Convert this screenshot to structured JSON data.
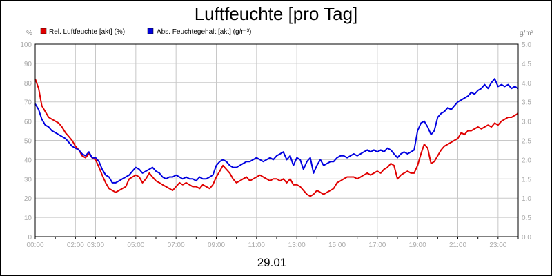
{
  "chart_data": {
    "type": "line",
    "title": "Luftfeuchte [pro Tag]",
    "date_label": "29.01",
    "y_left": {
      "unit": "%",
      "min": 0,
      "max": 100,
      "step": 10,
      "ticks": [
        "0",
        "10",
        "20",
        "30",
        "40",
        "50",
        "60",
        "70",
        "80",
        "90",
        "100"
      ]
    },
    "y_right": {
      "unit": "g/m³",
      "min": 0,
      "max": 5,
      "step": 0.5,
      "ticks": [
        "0.0",
        "0.5",
        "1.0",
        "1.5",
        "2.0",
        "2.5",
        "3.0",
        "3.5",
        "4.0",
        "4.5",
        "5.0"
      ]
    },
    "x_range_hours": [
      0,
      24
    ],
    "x_ticks": [
      {
        "h": 0,
        "label": "00:00"
      },
      {
        "h": 2,
        "label": "02:00"
      },
      {
        "h": 3,
        "label": "03:00"
      },
      {
        "h": 5,
        "label": "05:00"
      },
      {
        "h": 7,
        "label": "07:00"
      },
      {
        "h": 9,
        "label": "09:00"
      },
      {
        "h": 11,
        "label": "11:00"
      },
      {
        "h": 13,
        "label": "13:00"
      },
      {
        "h": 15,
        "label": "15:00"
      },
      {
        "h": 17,
        "label": "17:00"
      },
      {
        "h": 19,
        "label": "19:00"
      },
      {
        "h": 21,
        "label": "21:00"
      },
      {
        "h": 23,
        "label": "23:00"
      }
    ],
    "grid": true,
    "series": [
      {
        "name": "Rel. Luftfeuchte [akt] (%)",
        "axis": "left",
        "color": "#e00000",
        "points": [
          [
            0,
            82
          ],
          [
            0.17,
            77
          ],
          [
            0.33,
            68
          ],
          [
            0.5,
            65
          ],
          [
            0.67,
            62
          ],
          [
            0.83,
            61
          ],
          [
            1,
            60
          ],
          [
            1.17,
            59
          ],
          [
            1.33,
            57
          ],
          [
            1.5,
            54
          ],
          [
            1.67,
            52
          ],
          [
            1.83,
            50
          ],
          [
            2,
            47
          ],
          [
            2.17,
            45
          ],
          [
            2.33,
            42
          ],
          [
            2.5,
            41
          ],
          [
            2.67,
            43
          ],
          [
            2.83,
            41
          ],
          [
            3,
            40
          ],
          [
            3.17,
            36
          ],
          [
            3.33,
            32
          ],
          [
            3.5,
            28
          ],
          [
            3.67,
            25
          ],
          [
            3.83,
            24
          ],
          [
            4,
            23
          ],
          [
            4.17,
            24
          ],
          [
            4.33,
            25
          ],
          [
            4.5,
            26
          ],
          [
            4.67,
            30
          ],
          [
            4.83,
            31
          ],
          [
            5,
            32
          ],
          [
            5.17,
            31
          ],
          [
            5.33,
            28
          ],
          [
            5.5,
            30
          ],
          [
            5.67,
            33
          ],
          [
            5.83,
            31
          ],
          [
            6,
            29
          ],
          [
            6.17,
            28
          ],
          [
            6.33,
            27
          ],
          [
            6.5,
            26
          ],
          [
            6.67,
            25
          ],
          [
            6.83,
            24
          ],
          [
            7,
            26
          ],
          [
            7.17,
            28
          ],
          [
            7.33,
            27
          ],
          [
            7.5,
            28
          ],
          [
            7.67,
            27
          ],
          [
            7.83,
            26
          ],
          [
            8,
            26
          ],
          [
            8.17,
            25
          ],
          [
            8.33,
            27
          ],
          [
            8.5,
            26
          ],
          [
            8.67,
            25
          ],
          [
            8.83,
            27
          ],
          [
            9,
            31
          ],
          [
            9.17,
            34
          ],
          [
            9.33,
            37
          ],
          [
            9.5,
            35
          ],
          [
            9.67,
            33
          ],
          [
            9.83,
            30
          ],
          [
            10,
            28
          ],
          [
            10.17,
            29
          ],
          [
            10.33,
            30
          ],
          [
            10.5,
            31
          ],
          [
            10.67,
            29
          ],
          [
            10.83,
            30
          ],
          [
            11,
            31
          ],
          [
            11.17,
            32
          ],
          [
            11.33,
            31
          ],
          [
            11.5,
            30
          ],
          [
            11.67,
            29
          ],
          [
            11.83,
            30
          ],
          [
            12,
            30
          ],
          [
            12.17,
            29
          ],
          [
            12.33,
            30
          ],
          [
            12.5,
            28
          ],
          [
            12.67,
            30
          ],
          [
            12.83,
            27
          ],
          [
            13,
            27
          ],
          [
            13.17,
            26
          ],
          [
            13.33,
            24
          ],
          [
            13.5,
            22
          ],
          [
            13.67,
            21
          ],
          [
            13.83,
            22
          ],
          [
            14,
            24
          ],
          [
            14.17,
            23
          ],
          [
            14.33,
            22
          ],
          [
            14.5,
            23
          ],
          [
            14.67,
            24
          ],
          [
            14.83,
            25
          ],
          [
            15,
            28
          ],
          [
            15.17,
            29
          ],
          [
            15.33,
            30
          ],
          [
            15.5,
            31
          ],
          [
            15.67,
            31
          ],
          [
            15.83,
            31
          ],
          [
            16,
            30
          ],
          [
            16.17,
            31
          ],
          [
            16.33,
            32
          ],
          [
            16.5,
            33
          ],
          [
            16.67,
            32
          ],
          [
            16.83,
            33
          ],
          [
            17,
            34
          ],
          [
            17.17,
            33
          ],
          [
            17.33,
            35
          ],
          [
            17.5,
            36
          ],
          [
            17.67,
            38
          ],
          [
            17.83,
            37
          ],
          [
            18,
            30
          ],
          [
            18.17,
            32
          ],
          [
            18.33,
            33
          ],
          [
            18.5,
            34
          ],
          [
            18.67,
            33
          ],
          [
            18.83,
            33
          ],
          [
            19,
            37
          ],
          [
            19.17,
            43
          ],
          [
            19.33,
            48
          ],
          [
            19.5,
            46
          ],
          [
            19.67,
            38
          ],
          [
            19.83,
            39
          ],
          [
            20,
            42
          ],
          [
            20.17,
            45
          ],
          [
            20.33,
            47
          ],
          [
            20.5,
            48
          ],
          [
            20.67,
            49
          ],
          [
            20.83,
            50
          ],
          [
            21,
            51
          ],
          [
            21.17,
            54
          ],
          [
            21.33,
            53
          ],
          [
            21.5,
            55
          ],
          [
            21.67,
            55
          ],
          [
            21.83,
            56
          ],
          [
            22,
            57
          ],
          [
            22.17,
            56
          ],
          [
            22.33,
            57
          ],
          [
            22.5,
            58
          ],
          [
            22.67,
            57
          ],
          [
            22.83,
            59
          ],
          [
            23,
            58
          ],
          [
            23.17,
            60
          ],
          [
            23.33,
            61
          ],
          [
            23.5,
            62
          ],
          [
            23.67,
            62
          ],
          [
            23.83,
            63
          ],
          [
            24,
            64
          ]
        ]
      },
      {
        "name": "Abs. Feuchtegehalt [akt] (g/m³)",
        "axis": "right",
        "color": "#0000e0",
        "points": [
          [
            0,
            3.45
          ],
          [
            0.17,
            3.3
          ],
          [
            0.33,
            3.05
          ],
          [
            0.5,
            2.9
          ],
          [
            0.67,
            2.85
          ],
          [
            0.83,
            2.75
          ],
          [
            1,
            2.7
          ],
          [
            1.17,
            2.65
          ],
          [
            1.33,
            2.6
          ],
          [
            1.5,
            2.55
          ],
          [
            1.67,
            2.45
          ],
          [
            1.83,
            2.35
          ],
          [
            2,
            2.3
          ],
          [
            2.17,
            2.25
          ],
          [
            2.33,
            2.15
          ],
          [
            2.5,
            2.1
          ],
          [
            2.67,
            2.2
          ],
          [
            2.83,
            2.05
          ],
          [
            3,
            2.05
          ],
          [
            3.17,
            1.95
          ],
          [
            3.33,
            1.75
          ],
          [
            3.5,
            1.6
          ],
          [
            3.67,
            1.55
          ],
          [
            3.83,
            1.4
          ],
          [
            4,
            1.4
          ],
          [
            4.17,
            1.45
          ],
          [
            4.33,
            1.5
          ],
          [
            4.5,
            1.55
          ],
          [
            4.67,
            1.6
          ],
          [
            4.83,
            1.7
          ],
          [
            5,
            1.8
          ],
          [
            5.17,
            1.75
          ],
          [
            5.33,
            1.65
          ],
          [
            5.5,
            1.7
          ],
          [
            5.67,
            1.75
          ],
          [
            5.83,
            1.8
          ],
          [
            6,
            1.7
          ],
          [
            6.17,
            1.65
          ],
          [
            6.33,
            1.55
          ],
          [
            6.5,
            1.5
          ],
          [
            6.67,
            1.55
          ],
          [
            6.83,
            1.55
          ],
          [
            7,
            1.6
          ],
          [
            7.17,
            1.55
          ],
          [
            7.33,
            1.5
          ],
          [
            7.5,
            1.55
          ],
          [
            7.67,
            1.5
          ],
          [
            7.83,
            1.5
          ],
          [
            8,
            1.45
          ],
          [
            8.17,
            1.55
          ],
          [
            8.33,
            1.5
          ],
          [
            8.5,
            1.5
          ],
          [
            8.67,
            1.55
          ],
          [
            8.83,
            1.6
          ],
          [
            9,
            1.85
          ],
          [
            9.17,
            1.95
          ],
          [
            9.33,
            2.0
          ],
          [
            9.5,
            1.95
          ],
          [
            9.67,
            1.85
          ],
          [
            9.83,
            1.8
          ],
          [
            10,
            1.8
          ],
          [
            10.17,
            1.85
          ],
          [
            10.33,
            1.9
          ],
          [
            10.5,
            1.95
          ],
          [
            10.67,
            1.95
          ],
          [
            10.83,
            2.0
          ],
          [
            11,
            2.05
          ],
          [
            11.17,
            2.0
          ],
          [
            11.33,
            1.95
          ],
          [
            11.5,
            2.0
          ],
          [
            11.67,
            2.05
          ],
          [
            11.83,
            2.0
          ],
          [
            12,
            2.1
          ],
          [
            12.17,
            2.15
          ],
          [
            12.33,
            2.2
          ],
          [
            12.5,
            2.0
          ],
          [
            12.67,
            2.1
          ],
          [
            12.83,
            1.85
          ],
          [
            13,
            2.05
          ],
          [
            13.17,
            2.0
          ],
          [
            13.33,
            1.75
          ],
          [
            13.5,
            1.95
          ],
          [
            13.67,
            2.05
          ],
          [
            13.83,
            1.65
          ],
          [
            14,
            1.85
          ],
          [
            14.17,
            2.0
          ],
          [
            14.33,
            1.85
          ],
          [
            14.5,
            1.9
          ],
          [
            14.67,
            1.95
          ],
          [
            14.83,
            1.95
          ],
          [
            15,
            2.05
          ],
          [
            15.17,
            2.1
          ],
          [
            15.33,
            2.1
          ],
          [
            15.5,
            2.05
          ],
          [
            15.67,
            2.1
          ],
          [
            15.83,
            2.15
          ],
          [
            16,
            2.1
          ],
          [
            16.17,
            2.15
          ],
          [
            16.33,
            2.2
          ],
          [
            16.5,
            2.25
          ],
          [
            16.67,
            2.2
          ],
          [
            16.83,
            2.25
          ],
          [
            17,
            2.2
          ],
          [
            17.17,
            2.25
          ],
          [
            17.33,
            2.2
          ],
          [
            17.5,
            2.3
          ],
          [
            17.67,
            2.25
          ],
          [
            17.83,
            2.15
          ],
          [
            18,
            2.05
          ],
          [
            18.17,
            2.15
          ],
          [
            18.33,
            2.2
          ],
          [
            18.5,
            2.15
          ],
          [
            18.67,
            2.2
          ],
          [
            18.83,
            2.25
          ],
          [
            19,
            2.75
          ],
          [
            19.17,
            2.95
          ],
          [
            19.33,
            3.0
          ],
          [
            19.5,
            2.85
          ],
          [
            19.67,
            2.65
          ],
          [
            19.83,
            2.75
          ],
          [
            20,
            3.1
          ],
          [
            20.17,
            3.2
          ],
          [
            20.33,
            3.25
          ],
          [
            20.5,
            3.35
          ],
          [
            20.67,
            3.3
          ],
          [
            20.83,
            3.4
          ],
          [
            21,
            3.5
          ],
          [
            21.17,
            3.55
          ],
          [
            21.33,
            3.6
          ],
          [
            21.5,
            3.65
          ],
          [
            21.67,
            3.75
          ],
          [
            21.83,
            3.7
          ],
          [
            22,
            3.8
          ],
          [
            22.17,
            3.85
          ],
          [
            22.33,
            3.95
          ],
          [
            22.5,
            3.85
          ],
          [
            22.67,
            4.0
          ],
          [
            22.83,
            4.1
          ],
          [
            23,
            3.9
          ],
          [
            23.17,
            3.95
          ],
          [
            23.33,
            3.9
          ],
          [
            23.5,
            3.95
          ],
          [
            23.67,
            3.85
          ],
          [
            23.83,
            3.9
          ],
          [
            24,
            3.85
          ]
        ]
      }
    ]
  }
}
